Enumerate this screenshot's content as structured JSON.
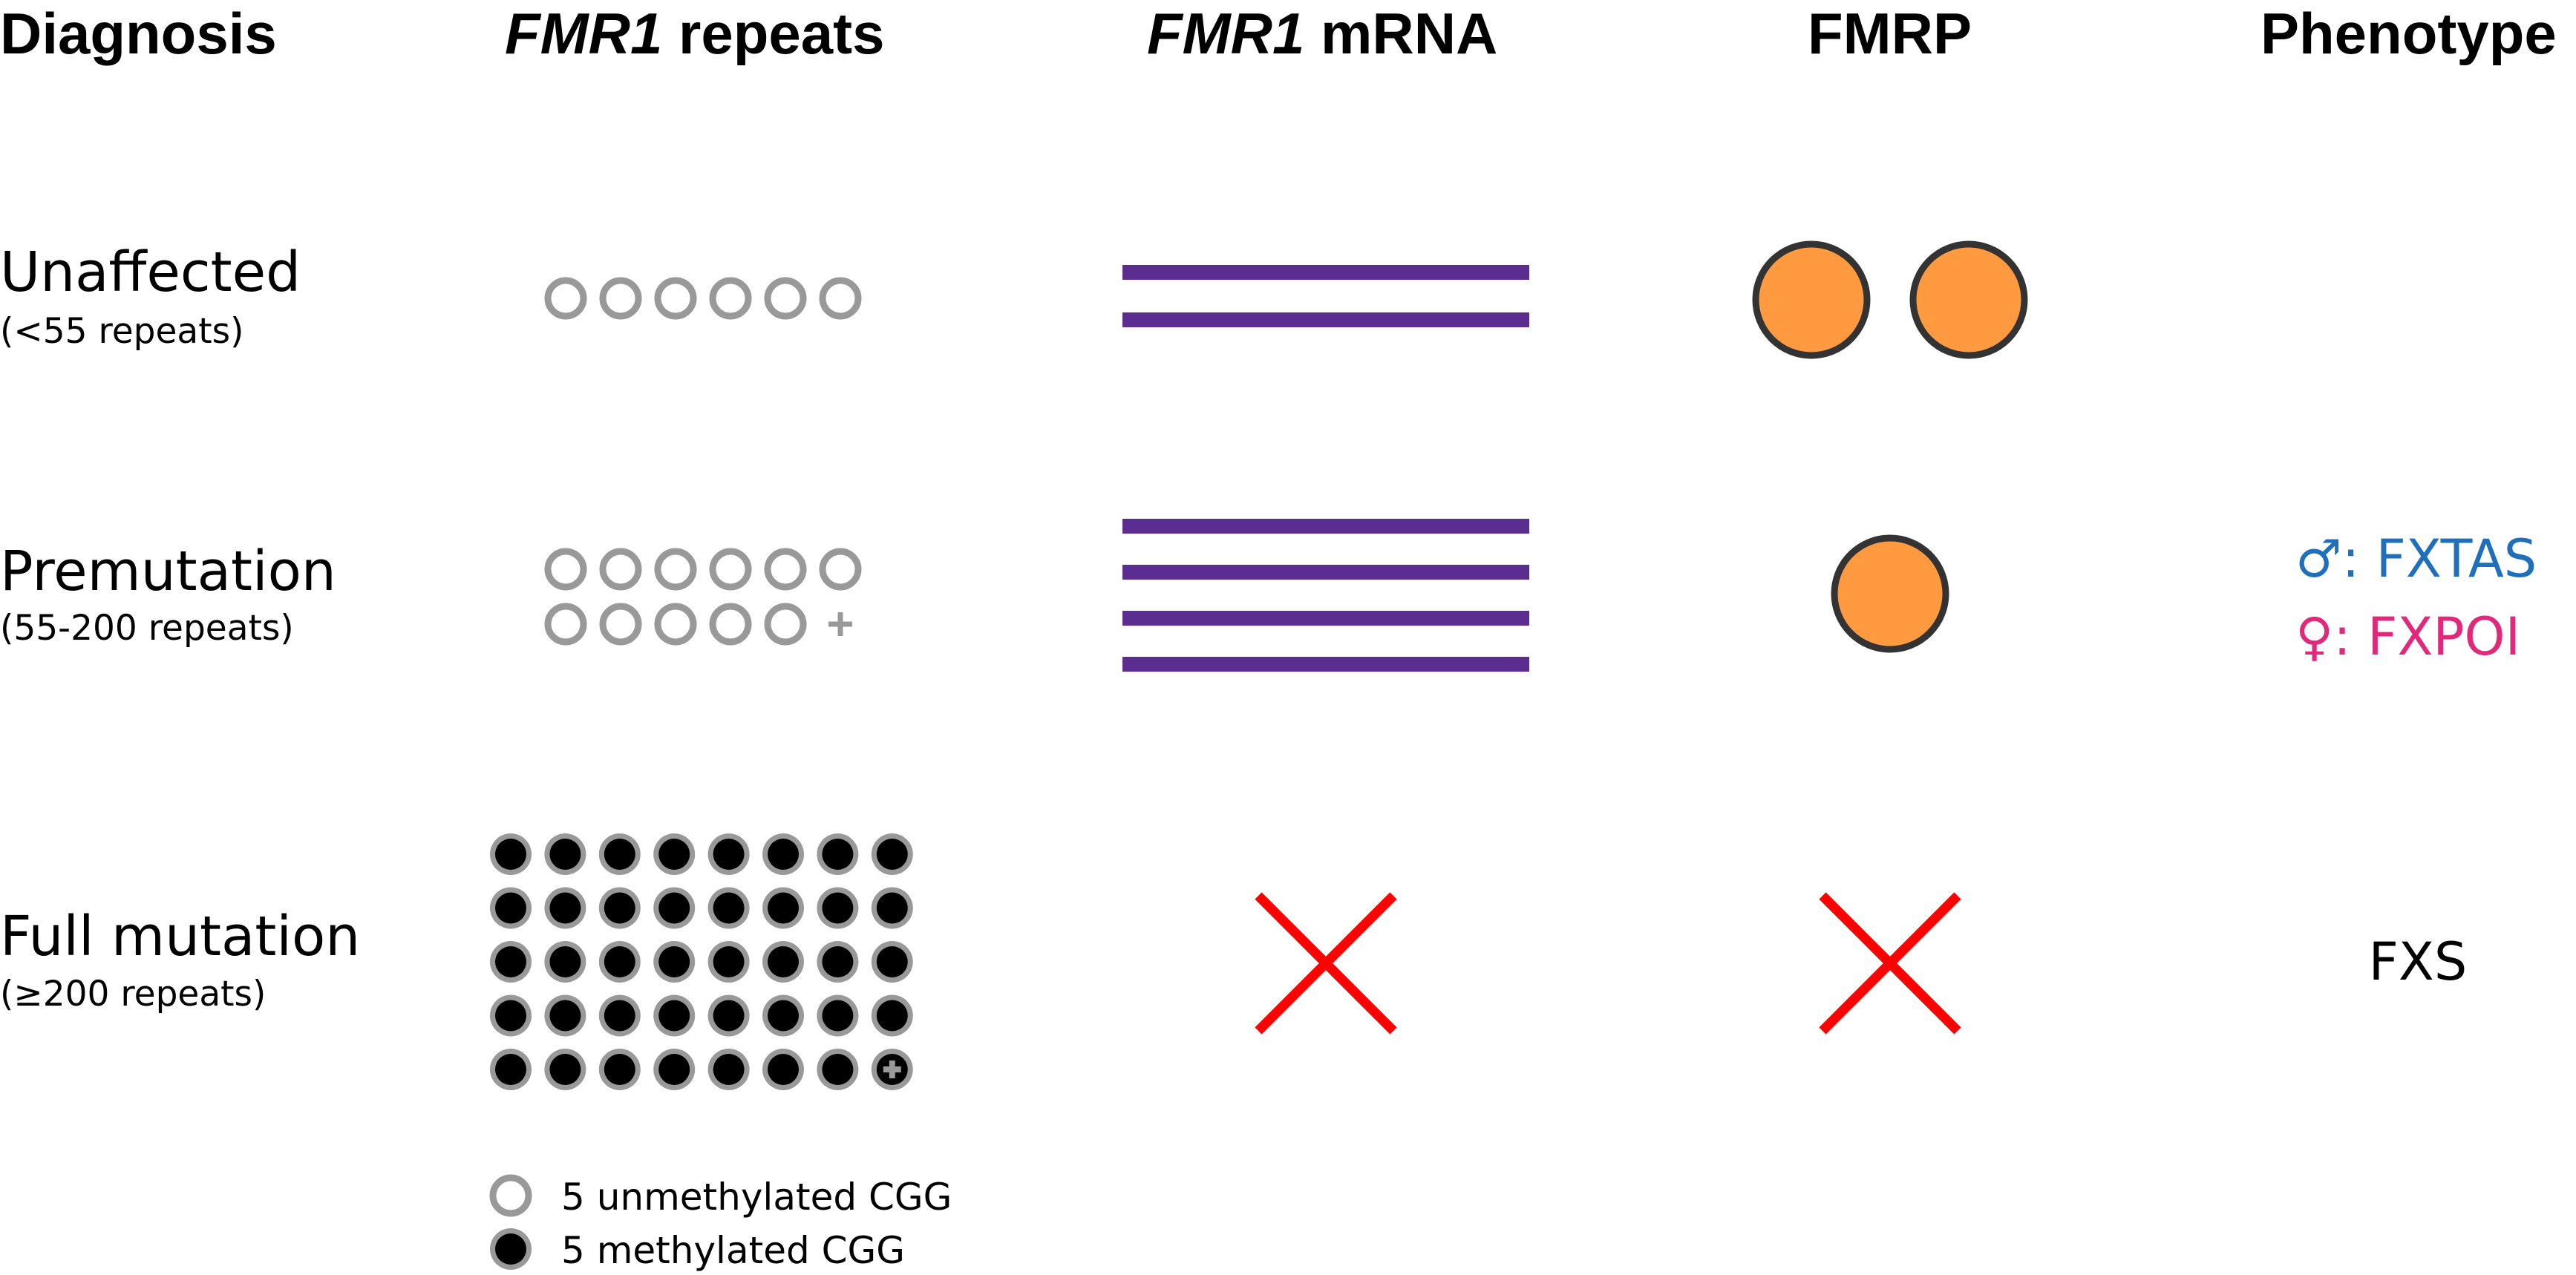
{
  "headers": {
    "diagnosis": "Diagnosis",
    "repeats_gene": "FMR1",
    "repeats_rest": " repeats",
    "mrna_gene": "FMR1",
    "mrna_rest": " mRNA",
    "fmrp": "FMRP",
    "phenotype": "Phenotype"
  },
  "rows": [
    {
      "diagnosis": "Unaffected",
      "range": "(<55 repeats)",
      "unmethylated_circles": 6,
      "mrna_bars": 2,
      "fmrp_circles": 2,
      "absent": false
    },
    {
      "diagnosis": "Premutation",
      "range": "(55-200 repeats)",
      "unmethylated_circles": 11,
      "mrna_bars": 4,
      "fmrp_circles": 1,
      "absent": false,
      "phenotype": {
        "male_symbol": "♂",
        "male_text": ": FXTAS",
        "female_symbol": "♀",
        "female_text": ": FXPOI",
        "male_color": "#1f6fba",
        "female_color": "#e0297a"
      }
    },
    {
      "diagnosis": "Full mutation",
      "range": "(≥200 repeats)",
      "methylated_circles": 39,
      "mrna_bars": 0,
      "fmrp_circles": 0,
      "absent": true,
      "phenotype_text": "FXS"
    }
  ],
  "legend": {
    "unmethylated": "5 unmethylated CGG",
    "methylated": "5 methylated CGG"
  },
  "colors": {
    "mrna": "#5b2d91",
    "fmrp": "#ff9a40",
    "absent_x": "#ff0000",
    "repeat_outline": "#999999"
  },
  "icons": {
    "unmethylated": "open-circle",
    "methylated": "filled-circle",
    "absent": "red-x",
    "more": "plus"
  }
}
